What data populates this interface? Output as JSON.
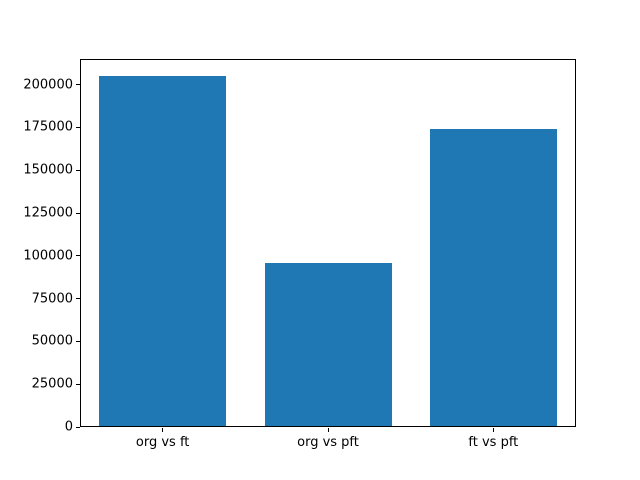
{
  "chart_data": {
    "type": "bar",
    "categories": [
      "org vs ft",
      "org vs pft",
      "ft vs pft"
    ],
    "values": [
      205000,
      96000,
      174000
    ],
    "title": "",
    "xlabel": "",
    "ylabel": "",
    "ylim": [
      0,
      215000
    ],
    "yticks": [
      0,
      25000,
      50000,
      75000,
      100000,
      125000,
      150000,
      175000,
      200000
    ],
    "bar_color": "#1f77b4",
    "axis_color": "#000000",
    "background_color": "#ffffff",
    "grid": false,
    "legend": "none"
  }
}
